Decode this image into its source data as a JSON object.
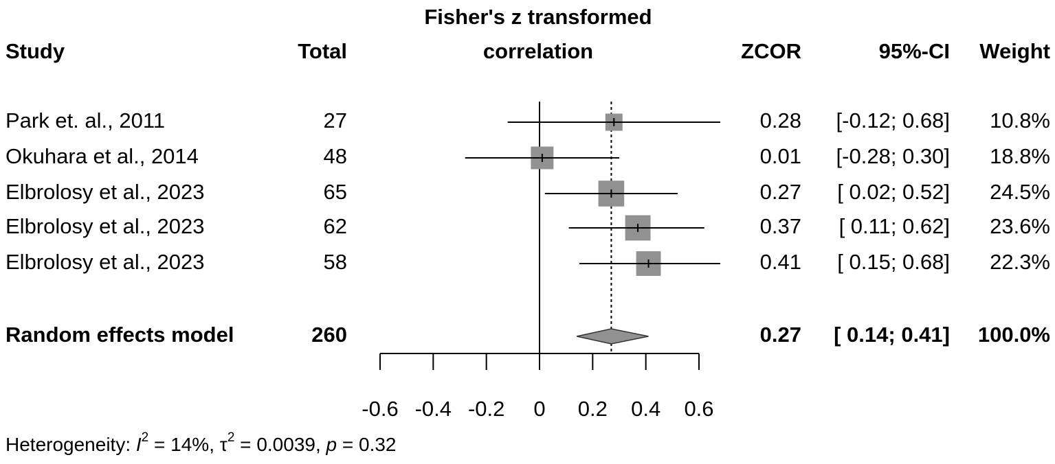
{
  "chart_data": {
    "type": "forest",
    "title": [
      "Fisher's z transformed",
      "correlation"
    ],
    "columns": {
      "study": "Study",
      "total": "Total",
      "estimate": "ZCOR",
      "ci": "95%-CI",
      "weight": "Weight"
    },
    "studies": [
      {
        "name": "Park et. al., 2011",
        "total": 27,
        "estimate": 0.28,
        "lower": -0.12,
        "upper": 0.68,
        "ci_label": "[-0.12; 0.68]",
        "weight": 10.8,
        "weight_label": "10.8%"
      },
      {
        "name": "Okuhara et al., 2014",
        "total": 48,
        "estimate": 0.01,
        "lower": -0.28,
        "upper": 0.3,
        "ci_label": "[-0.28; 0.30]",
        "weight": 18.8,
        "weight_label": "18.8%"
      },
      {
        "name": "Elbrolosy et al., 2023",
        "total": 65,
        "estimate": 0.27,
        "lower": 0.02,
        "upper": 0.52,
        "ci_label": "[ 0.02; 0.52]",
        "weight": 24.5,
        "weight_label": "24.5%"
      },
      {
        "name": "Elbrolosy et al., 2023",
        "total": 62,
        "estimate": 0.37,
        "lower": 0.11,
        "upper": 0.62,
        "ci_label": "[ 0.11; 0.62]",
        "weight": 23.6,
        "weight_label": "23.6%"
      },
      {
        "name": "Elbrolosy et al., 2023",
        "total": 58,
        "estimate": 0.41,
        "lower": 0.15,
        "upper": 0.68,
        "ci_label": "[ 0.15; 0.68]",
        "weight": 22.3,
        "weight_label": "22.3%"
      }
    ],
    "summary": {
      "name": "Random effects model",
      "total": 260,
      "estimate": 0.27,
      "lower": 0.14,
      "upper": 0.41,
      "ci_label": "[ 0.14; 0.41]",
      "weight": 100.0,
      "weight_label": "100.0%"
    },
    "xlim": [
      -0.6,
      0.6
    ],
    "xticks": [
      -0.6,
      -0.4,
      -0.2,
      0,
      0.2,
      0.4,
      0.6
    ],
    "color": "#919191",
    "heterogeneity": [
      "Heterogeneity: ",
      "I",
      "2",
      " = 14%, τ",
      "2",
      " = 0.0039, ",
      "p",
      " = 0.32"
    ]
  }
}
